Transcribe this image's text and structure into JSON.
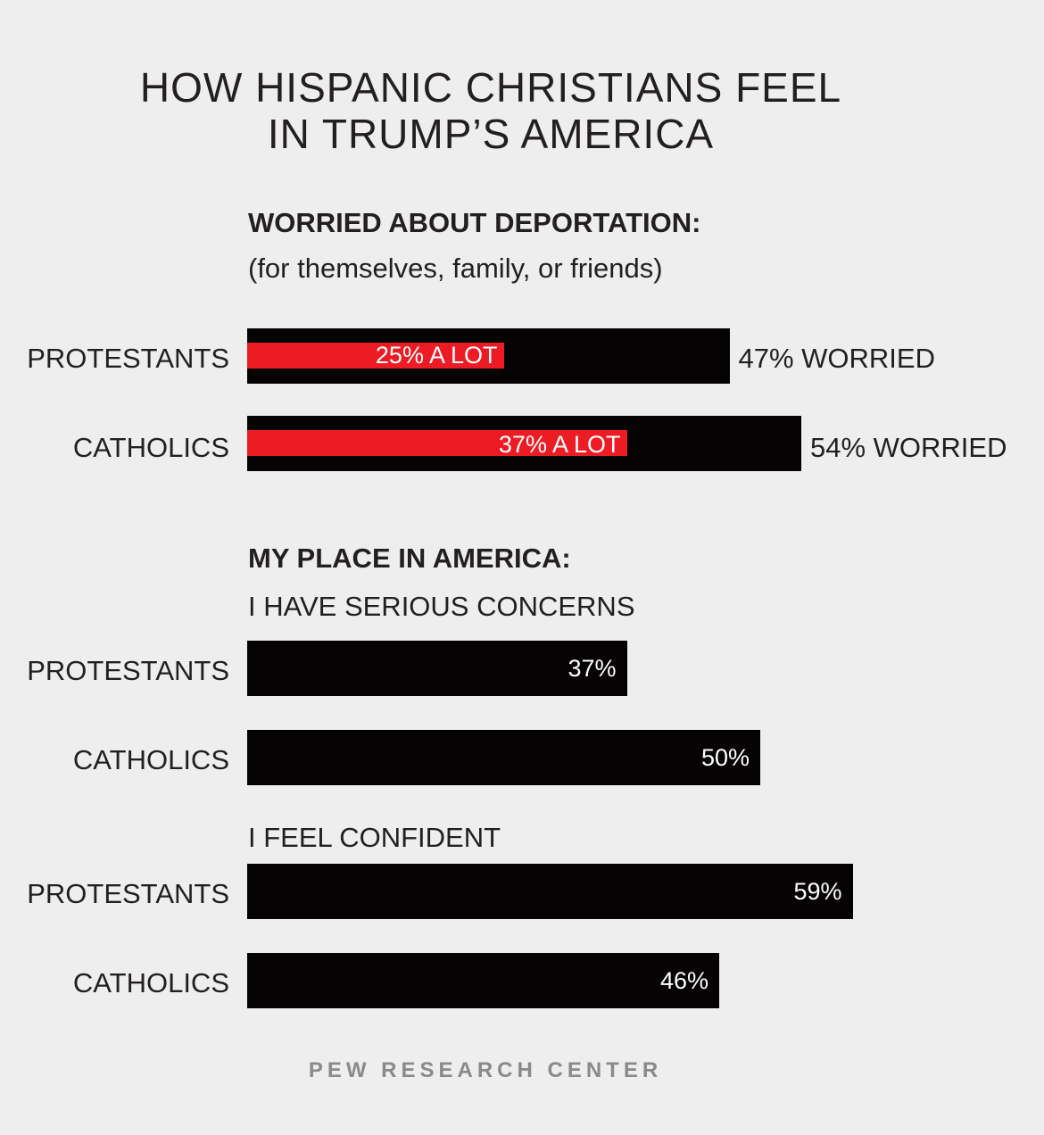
{
  "title_line1": "HOW HISPANIC CHRISTIANS FEEL",
  "title_line2": "IN TRUMP’S AMERICA",
  "footer": "PEW RESEARCH CENTER",
  "colors": {
    "bar": "#050203",
    "highlight": "#ed1c24",
    "background": "#eeeeee"
  },
  "chart_data": [
    {
      "type": "bar",
      "title": "WORRIED ABOUT DEPORTATION:",
      "subtitle": "(for themselves, family, or friends)",
      "categories": [
        "PROTESTANTS",
        "CATHOLICS"
      ],
      "series": [
        {
          "name": "Worried",
          "values": [
            47,
            54
          ],
          "labels": [
            "47% WORRIED",
            "54% WORRIED"
          ]
        },
        {
          "name": "A lot",
          "values": [
            25,
            37
          ],
          "labels": [
            "25% A LOT",
            "37% A LOT"
          ]
        }
      ],
      "unit": "%"
    },
    {
      "type": "bar",
      "title": "MY PLACE IN AMERICA:",
      "subtitle": "I HAVE SERIOUS CONCERNS",
      "categories": [
        "PROTESTANTS",
        "CATHOLICS"
      ],
      "values": [
        37,
        50
      ],
      "labels": [
        "37%",
        "50%"
      ],
      "unit": "%"
    },
    {
      "type": "bar",
      "subtitle": "I FEEL CONFIDENT",
      "categories": [
        "PROTESTANTS",
        "CATHOLICS"
      ],
      "values": [
        59,
        46
      ],
      "labels": [
        "59%",
        "46%"
      ],
      "unit": "%"
    }
  ]
}
